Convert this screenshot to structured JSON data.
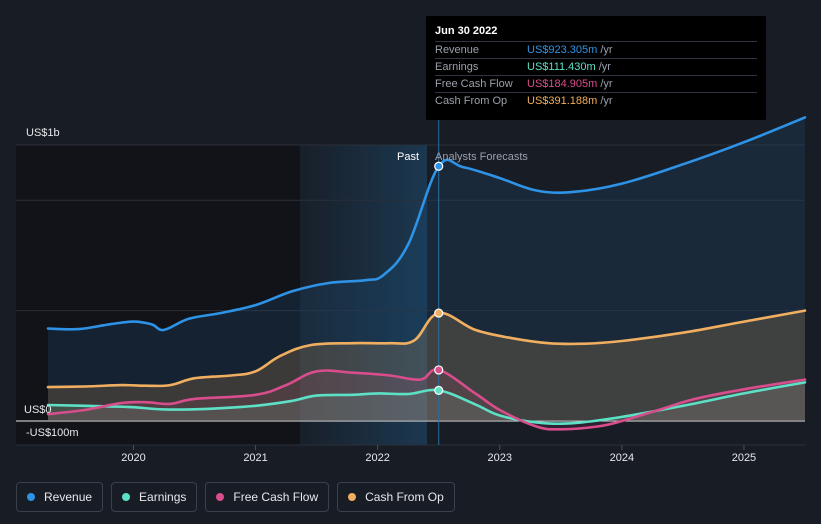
{
  "chart_data": {
    "type": "area",
    "y_unit_labels": {
      "top": "US$1b",
      "zero": "US$0",
      "bottom": "-US$100m"
    },
    "ylim": [
      -100,
      1000
    ],
    "x_ticks": [
      "2020",
      "2021",
      "2022",
      "2023",
      "2024",
      "2025"
    ],
    "section_labels": {
      "past": "Past",
      "forecast": "Analysts Forecasts"
    },
    "divider_date": 2022.5,
    "series": [
      {
        "name": "Revenue",
        "color": "#2e93e6",
        "points": [
          [
            2019.3,
            335
          ],
          [
            2019.55,
            333
          ],
          [
            2019.8,
            350
          ],
          [
            2020.0,
            360
          ],
          [
            2020.15,
            350
          ],
          [
            2020.25,
            330
          ],
          [
            2020.45,
            370
          ],
          [
            2020.7,
            390
          ],
          [
            2021.0,
            420
          ],
          [
            2021.3,
            470
          ],
          [
            2021.6,
            500
          ],
          [
            2021.9,
            510
          ],
          [
            2022.05,
            530
          ],
          [
            2022.25,
            640
          ],
          [
            2022.5,
            923
          ],
          [
            2022.7,
            920
          ],
          [
            2023.0,
            880
          ],
          [
            2023.3,
            835
          ],
          [
            2023.6,
            830
          ],
          [
            2024.0,
            860
          ],
          [
            2024.5,
            930
          ],
          [
            2025.0,
            1010
          ],
          [
            2025.5,
            1100
          ]
        ]
      },
      {
        "name": "Earnings",
        "color": "#5de0c6",
        "points": [
          [
            2019.3,
            58
          ],
          [
            2019.8,
            53
          ],
          [
            2020.0,
            50
          ],
          [
            2020.25,
            42
          ],
          [
            2020.6,
            44
          ],
          [
            2021.0,
            55
          ],
          [
            2021.3,
            73
          ],
          [
            2021.5,
            92
          ],
          [
            2021.8,
            95
          ],
          [
            2022.0,
            100
          ],
          [
            2022.25,
            98
          ],
          [
            2022.5,
            111
          ],
          [
            2022.8,
            60
          ],
          [
            2023.0,
            20
          ],
          [
            2023.3,
            -5
          ],
          [
            2023.6,
            -8
          ],
          [
            2024.0,
            15
          ],
          [
            2024.5,
            55
          ],
          [
            2025.0,
            100
          ],
          [
            2025.5,
            140
          ]
        ]
      },
      {
        "name": "Free Cash Flow",
        "color": "#d84d8c",
        "points": [
          [
            2019.3,
            25
          ],
          [
            2019.6,
            40
          ],
          [
            2019.9,
            65
          ],
          [
            2020.1,
            68
          ],
          [
            2020.3,
            62
          ],
          [
            2020.5,
            80
          ],
          [
            2021.0,
            95
          ],
          [
            2021.25,
            130
          ],
          [
            2021.5,
            180
          ],
          [
            2021.8,
            175
          ],
          [
            2022.1,
            165
          ],
          [
            2022.35,
            150
          ],
          [
            2022.5,
            185
          ],
          [
            2022.8,
            100
          ],
          [
            2023.0,
            40
          ],
          [
            2023.3,
            -20
          ],
          [
            2023.5,
            -30
          ],
          [
            2023.8,
            -20
          ],
          [
            2024.0,
            0
          ],
          [
            2024.3,
            40
          ],
          [
            2024.6,
            80
          ],
          [
            2025.0,
            115
          ],
          [
            2025.5,
            150
          ]
        ]
      },
      {
        "name": "Cash From Op",
        "color": "#f0ae60",
        "points": [
          [
            2019.3,
            123
          ],
          [
            2019.6,
            125
          ],
          [
            2019.9,
            130
          ],
          [
            2020.1,
            128
          ],
          [
            2020.3,
            130
          ],
          [
            2020.5,
            155
          ],
          [
            2020.8,
            165
          ],
          [
            2021.0,
            180
          ],
          [
            2021.2,
            235
          ],
          [
            2021.45,
            275
          ],
          [
            2021.8,
            282
          ],
          [
            2022.1,
            282
          ],
          [
            2022.3,
            292
          ],
          [
            2022.5,
            391
          ],
          [
            2022.8,
            330
          ],
          [
            2023.1,
            300
          ],
          [
            2023.4,
            282
          ],
          [
            2023.7,
            280
          ],
          [
            2024.0,
            290
          ],
          [
            2024.5,
            320
          ],
          [
            2025.0,
            360
          ],
          [
            2025.5,
            400
          ]
        ]
      }
    ],
    "highlight_values": [
      923,
      111,
      185,
      391
    ]
  },
  "tooltip": {
    "date": "Jun 30 2022",
    "rows": [
      {
        "name": "Revenue",
        "value": "US$923.305m",
        "unit": "/yr",
        "color": "#2e93e6"
      },
      {
        "name": "Earnings",
        "value": "US$111.430m",
        "unit": "/yr",
        "color": "#5de0c6"
      },
      {
        "name": "Free Cash Flow",
        "value": "US$184.905m",
        "unit": "/yr",
        "color": "#d84d8c"
      },
      {
        "name": "Cash From Op",
        "value": "US$391.188m",
        "unit": "/yr",
        "color": "#f0ae60"
      }
    ]
  },
  "legend": [
    {
      "label": "Revenue",
      "color": "#2e93e6"
    },
    {
      "label": "Earnings",
      "color": "#5de0c6"
    },
    {
      "label": "Free Cash Flow",
      "color": "#d84d8c"
    },
    {
      "label": "Cash From Op",
      "color": "#f0ae60"
    }
  ]
}
